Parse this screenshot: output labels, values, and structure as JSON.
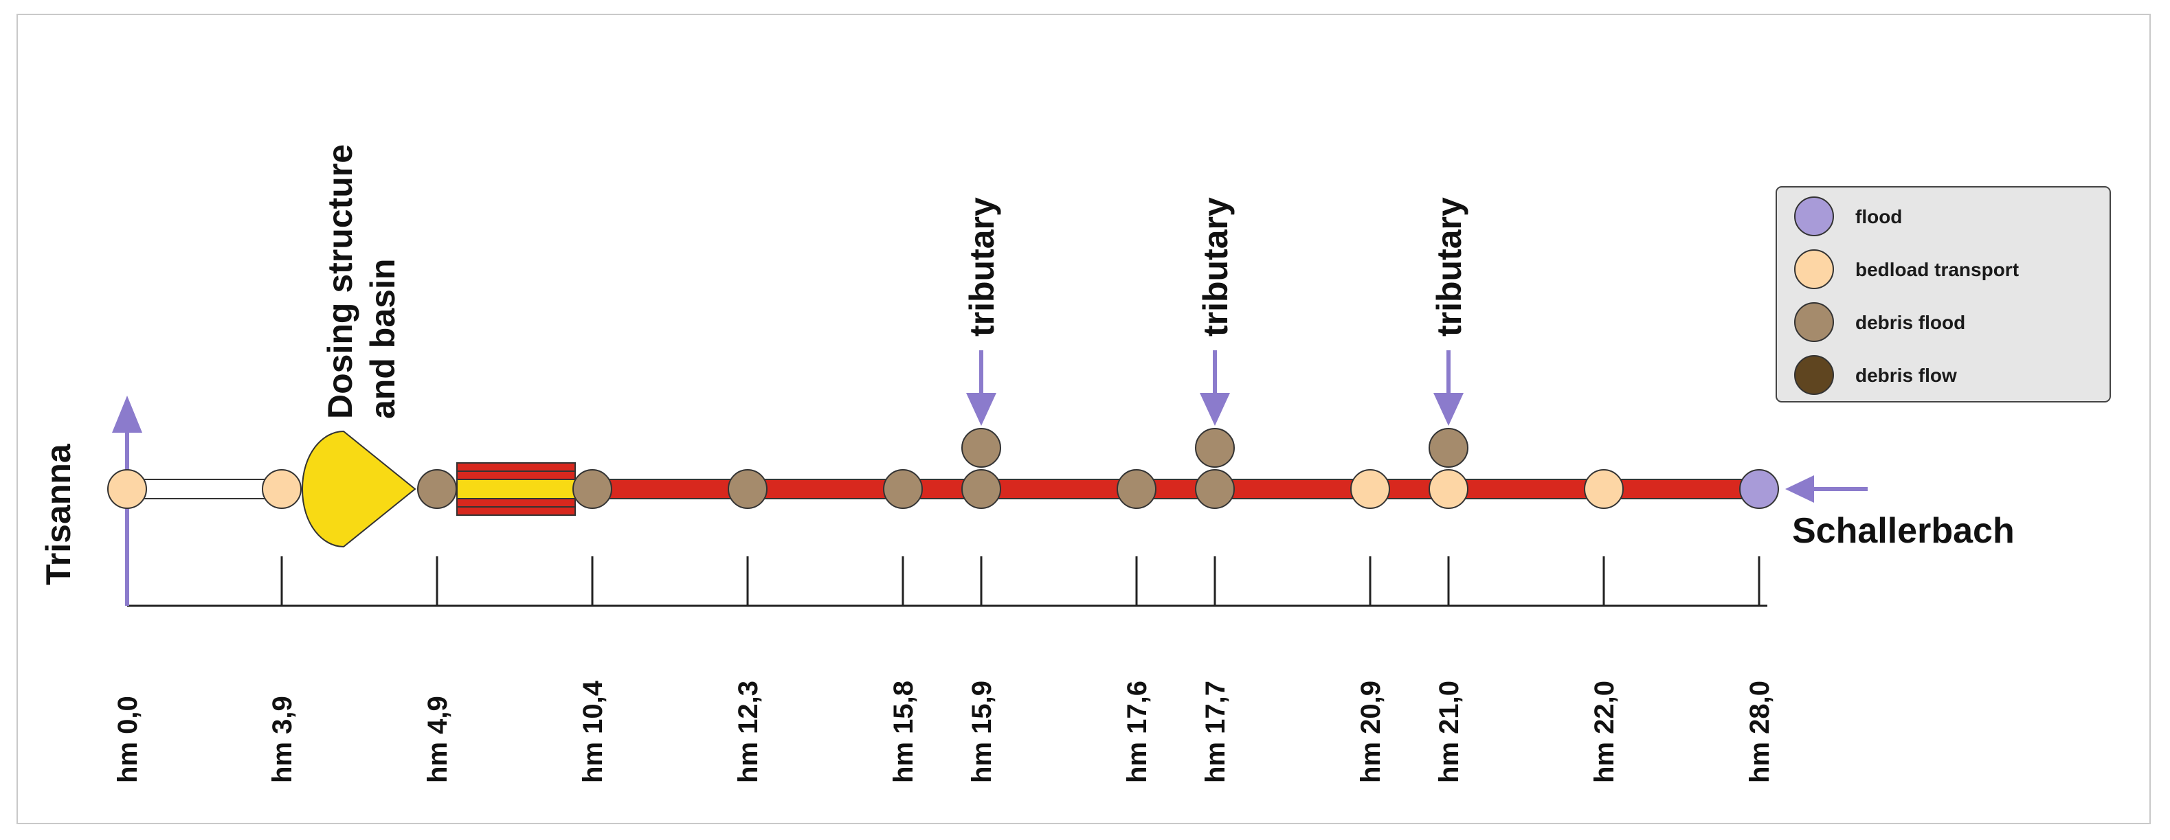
{
  "diagram": {
    "left_label": "Trisanna",
    "right_label": "Schallerbach",
    "structure_label_line1": "Dosing structure",
    "structure_label_line2": "and basin",
    "tributary_label": "tributary",
    "tick_labels": [
      "hm 0,0",
      "hm 3,9",
      "hm 4,9",
      "hm 10,4",
      "hm 12,3",
      "hm 15,8",
      "hm 15,9",
      "hm 17,6",
      "hm 17,7",
      "hm 20,9",
      "hm 21,0",
      "hm 22,0",
      "hm 28,0"
    ]
  },
  "legend": {
    "items": [
      {
        "label": "flood",
        "color": "#a89bd8"
      },
      {
        "label": "bedload transport",
        "color": "#fdd6a5"
      },
      {
        "label": "debris flood",
        "color": "#a58b6c"
      },
      {
        "label": "debris flow",
        "color": "#5f4520"
      }
    ]
  },
  "colors": {
    "channel_red": "#d8281e",
    "structure_yellow": "#f8da14",
    "arrow_purple": "#8b7bcc",
    "flood": "#a89bd8",
    "bedload": "#fdd6a5",
    "debris_flood": "#a58b6c"
  }
}
